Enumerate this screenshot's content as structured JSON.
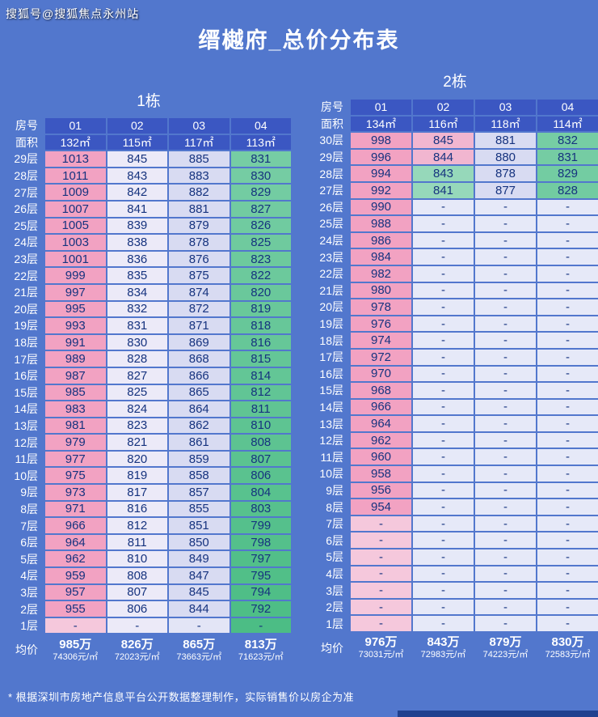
{
  "page": {
    "watermark": "搜狐号@搜狐焦点永州站",
    "title": "缙樾府_总价分布表",
    "footnote": "* 根据深圳市房地产信息平台公开数据整理制作，实际销售价以房企为准"
  },
  "labels": {
    "room_no": "房号",
    "area": "面积",
    "avg": "均价"
  },
  "palette": {
    "page_bg": "#5277cd",
    "header_bg": "#3b57c2",
    "cell_text": "#16337f",
    "pink": "#f2a2c2",
    "pink_soft": "#f1b6d0",
    "pink_light": "#f5c8dc",
    "white_cell": "#eceaf8",
    "lavender": "#d8dbf2",
    "lavender_light": "#e3e5f6",
    "empty": "#e6e9f8",
    "mint": "#96d8ba",
    "green_top": "#76cda4",
    "green_bottom": "#4cbd85"
  },
  "styles": {
    "b1_normal": [
      "pink",
      "white_cell",
      "lavender",
      "green"
    ],
    "b1_dash": [
      "pink_light",
      "white_cell",
      "lavender_light",
      "green"
    ],
    "b2_top_pink": [
      "pink",
      "pink_soft",
      "lavender",
      "green"
    ],
    "b2_top_mint": [
      "pink",
      "mint",
      "lavender",
      "green"
    ],
    "b2_mid": [
      "pink",
      "empty",
      "empty",
      "empty"
    ],
    "b2_dash": [
      "pink_light",
      "empty",
      "empty",
      "empty"
    ]
  },
  "buildings": [
    {
      "name": "1栋",
      "units": [
        "01",
        "02",
        "03",
        "04"
      ],
      "areas": [
        "132㎡",
        "115㎡",
        "117㎡",
        "113㎡"
      ],
      "rows": [
        {
          "floor": "29层",
          "values": [
            "1013",
            "845",
            "885",
            "831"
          ],
          "style": "b1_normal"
        },
        {
          "floor": "28层",
          "values": [
            "1011",
            "843",
            "883",
            "830"
          ],
          "style": "b1_normal"
        },
        {
          "floor": "27层",
          "values": [
            "1009",
            "842",
            "882",
            "829"
          ],
          "style": "b1_normal"
        },
        {
          "floor": "26层",
          "values": [
            "1007",
            "841",
            "881",
            "827"
          ],
          "style": "b1_normal"
        },
        {
          "floor": "25层",
          "values": [
            "1005",
            "839",
            "879",
            "826"
          ],
          "style": "b1_normal"
        },
        {
          "floor": "24层",
          "values": [
            "1003",
            "838",
            "878",
            "825"
          ],
          "style": "b1_normal"
        },
        {
          "floor": "23层",
          "values": [
            "1001",
            "836",
            "876",
            "823"
          ],
          "style": "b1_normal"
        },
        {
          "floor": "22层",
          "values": [
            "999",
            "835",
            "875",
            "822"
          ],
          "style": "b1_normal"
        },
        {
          "floor": "21层",
          "values": [
            "997",
            "834",
            "874",
            "820"
          ],
          "style": "b1_normal"
        },
        {
          "floor": "20层",
          "values": [
            "995",
            "832",
            "872",
            "819"
          ],
          "style": "b1_normal"
        },
        {
          "floor": "19层",
          "values": [
            "993",
            "831",
            "871",
            "818"
          ],
          "style": "b1_normal"
        },
        {
          "floor": "18层",
          "values": [
            "991",
            "830",
            "869",
            "816"
          ],
          "style": "b1_normal"
        },
        {
          "floor": "17层",
          "values": [
            "989",
            "828",
            "868",
            "815"
          ],
          "style": "b1_normal"
        },
        {
          "floor": "16层",
          "values": [
            "987",
            "827",
            "866",
            "814"
          ],
          "style": "b1_normal"
        },
        {
          "floor": "15层",
          "values": [
            "985",
            "825",
            "865",
            "812"
          ],
          "style": "b1_normal"
        },
        {
          "floor": "14层",
          "values": [
            "983",
            "824",
            "864",
            "811"
          ],
          "style": "b1_normal"
        },
        {
          "floor": "13层",
          "values": [
            "981",
            "823",
            "862",
            "810"
          ],
          "style": "b1_normal"
        },
        {
          "floor": "12层",
          "values": [
            "979",
            "821",
            "861",
            "808"
          ],
          "style": "b1_normal"
        },
        {
          "floor": "11层",
          "values": [
            "977",
            "820",
            "859",
            "807"
          ],
          "style": "b1_normal"
        },
        {
          "floor": "10层",
          "values": [
            "975",
            "819",
            "858",
            "806"
          ],
          "style": "b1_normal"
        },
        {
          "floor": "9层",
          "values": [
            "973",
            "817",
            "857",
            "804"
          ],
          "style": "b1_normal"
        },
        {
          "floor": "8层",
          "values": [
            "971",
            "816",
            "855",
            "803"
          ],
          "style": "b1_normal"
        },
        {
          "floor": "7层",
          "values": [
            "966",
            "812",
            "851",
            "799"
          ],
          "style": "b1_normal"
        },
        {
          "floor": "6层",
          "values": [
            "964",
            "811",
            "850",
            "798"
          ],
          "style": "b1_normal"
        },
        {
          "floor": "5层",
          "values": [
            "962",
            "810",
            "849",
            "797"
          ],
          "style": "b1_normal"
        },
        {
          "floor": "4层",
          "values": [
            "959",
            "808",
            "847",
            "795"
          ],
          "style": "b1_normal"
        },
        {
          "floor": "3层",
          "values": [
            "957",
            "807",
            "845",
            "794"
          ],
          "style": "b1_normal"
        },
        {
          "floor": "2层",
          "values": [
            "955",
            "806",
            "844",
            "792"
          ],
          "style": "b1_normal"
        },
        {
          "floor": "1层",
          "values": [
            "-",
            "-",
            "-",
            "-"
          ],
          "style": "b1_dash"
        }
      ],
      "avg": [
        {
          "price": "985万",
          "unit": "74306元/㎡"
        },
        {
          "price": "826万",
          "unit": "72023元/㎡"
        },
        {
          "price": "865万",
          "unit": "73663元/㎡"
        },
        {
          "price": "813万",
          "unit": "71623元/㎡"
        }
      ]
    },
    {
      "name": "2栋",
      "units": [
        "01",
        "02",
        "03",
        "04"
      ],
      "areas": [
        "134㎡",
        "116㎡",
        "118㎡",
        "114㎡"
      ],
      "rows": [
        {
          "floor": "30层",
          "values": [
            "998",
            "845",
            "881",
            "832"
          ],
          "style": "b2_top_pink"
        },
        {
          "floor": "29层",
          "values": [
            "996",
            "844",
            "880",
            "831"
          ],
          "style": "b2_top_pink"
        },
        {
          "floor": "28层",
          "values": [
            "994",
            "843",
            "878",
            "829"
          ],
          "style": "b2_top_mint"
        },
        {
          "floor": "27层",
          "values": [
            "992",
            "841",
            "877",
            "828"
          ],
          "style": "b2_top_mint"
        },
        {
          "floor": "26层",
          "values": [
            "990",
            "-",
            "-",
            "-"
          ],
          "style": "b2_mid"
        },
        {
          "floor": "25层",
          "values": [
            "988",
            "-",
            "-",
            "-"
          ],
          "style": "b2_mid"
        },
        {
          "floor": "24层",
          "values": [
            "986",
            "-",
            "-",
            "-"
          ],
          "style": "b2_mid"
        },
        {
          "floor": "23层",
          "values": [
            "984",
            "-",
            "-",
            "-"
          ],
          "style": "b2_mid"
        },
        {
          "floor": "22层",
          "values": [
            "982",
            "-",
            "-",
            "-"
          ],
          "style": "b2_mid"
        },
        {
          "floor": "21层",
          "values": [
            "980",
            "-",
            "-",
            "-"
          ],
          "style": "b2_mid"
        },
        {
          "floor": "20层",
          "values": [
            "978",
            "-",
            "-",
            "-"
          ],
          "style": "b2_mid"
        },
        {
          "floor": "19层",
          "values": [
            "976",
            "-",
            "-",
            "-"
          ],
          "style": "b2_mid"
        },
        {
          "floor": "18层",
          "values": [
            "974",
            "-",
            "-",
            "-"
          ],
          "style": "b2_mid"
        },
        {
          "floor": "17层",
          "values": [
            "972",
            "-",
            "-",
            "-"
          ],
          "style": "b2_mid"
        },
        {
          "floor": "16层",
          "values": [
            "970",
            "-",
            "-",
            "-"
          ],
          "style": "b2_mid"
        },
        {
          "floor": "15层",
          "values": [
            "968",
            "-",
            "-",
            "-"
          ],
          "style": "b2_mid"
        },
        {
          "floor": "14层",
          "values": [
            "966",
            "-",
            "-",
            "-"
          ],
          "style": "b2_mid"
        },
        {
          "floor": "13层",
          "values": [
            "964",
            "-",
            "-",
            "-"
          ],
          "style": "b2_mid"
        },
        {
          "floor": "12层",
          "values": [
            "962",
            "-",
            "-",
            "-"
          ],
          "style": "b2_mid"
        },
        {
          "floor": "11层",
          "values": [
            "960",
            "-",
            "-",
            "-"
          ],
          "style": "b2_mid"
        },
        {
          "floor": "10层",
          "values": [
            "958",
            "-",
            "-",
            "-"
          ],
          "style": "b2_mid"
        },
        {
          "floor": "9层",
          "values": [
            "956",
            "-",
            "-",
            "-"
          ],
          "style": "b2_mid"
        },
        {
          "floor": "8层",
          "values": [
            "954",
            "-",
            "-",
            "-"
          ],
          "style": "b2_mid"
        },
        {
          "floor": "7层",
          "values": [
            "-",
            "-",
            "-",
            "-"
          ],
          "style": "b2_dash"
        },
        {
          "floor": "6层",
          "values": [
            "-",
            "-",
            "-",
            "-"
          ],
          "style": "b2_dash"
        },
        {
          "floor": "5层",
          "values": [
            "-",
            "-",
            "-",
            "-"
          ],
          "style": "b2_dash"
        },
        {
          "floor": "4层",
          "values": [
            "-",
            "-",
            "-",
            "-"
          ],
          "style": "b2_dash"
        },
        {
          "floor": "3层",
          "values": [
            "-",
            "-",
            "-",
            "-"
          ],
          "style": "b2_dash"
        },
        {
          "floor": "2层",
          "values": [
            "-",
            "-",
            "-",
            "-"
          ],
          "style": "b2_dash"
        },
        {
          "floor": "1层",
          "values": [
            "-",
            "-",
            "-",
            "-"
          ],
          "style": "b2_dash"
        }
      ],
      "avg": [
        {
          "price": "976万",
          "unit": "73031元/㎡"
        },
        {
          "price": "843万",
          "unit": "72983元/㎡"
        },
        {
          "price": "879万",
          "unit": "74223元/㎡"
        },
        {
          "price": "830万",
          "unit": "72583元/㎡"
        }
      ]
    }
  ]
}
